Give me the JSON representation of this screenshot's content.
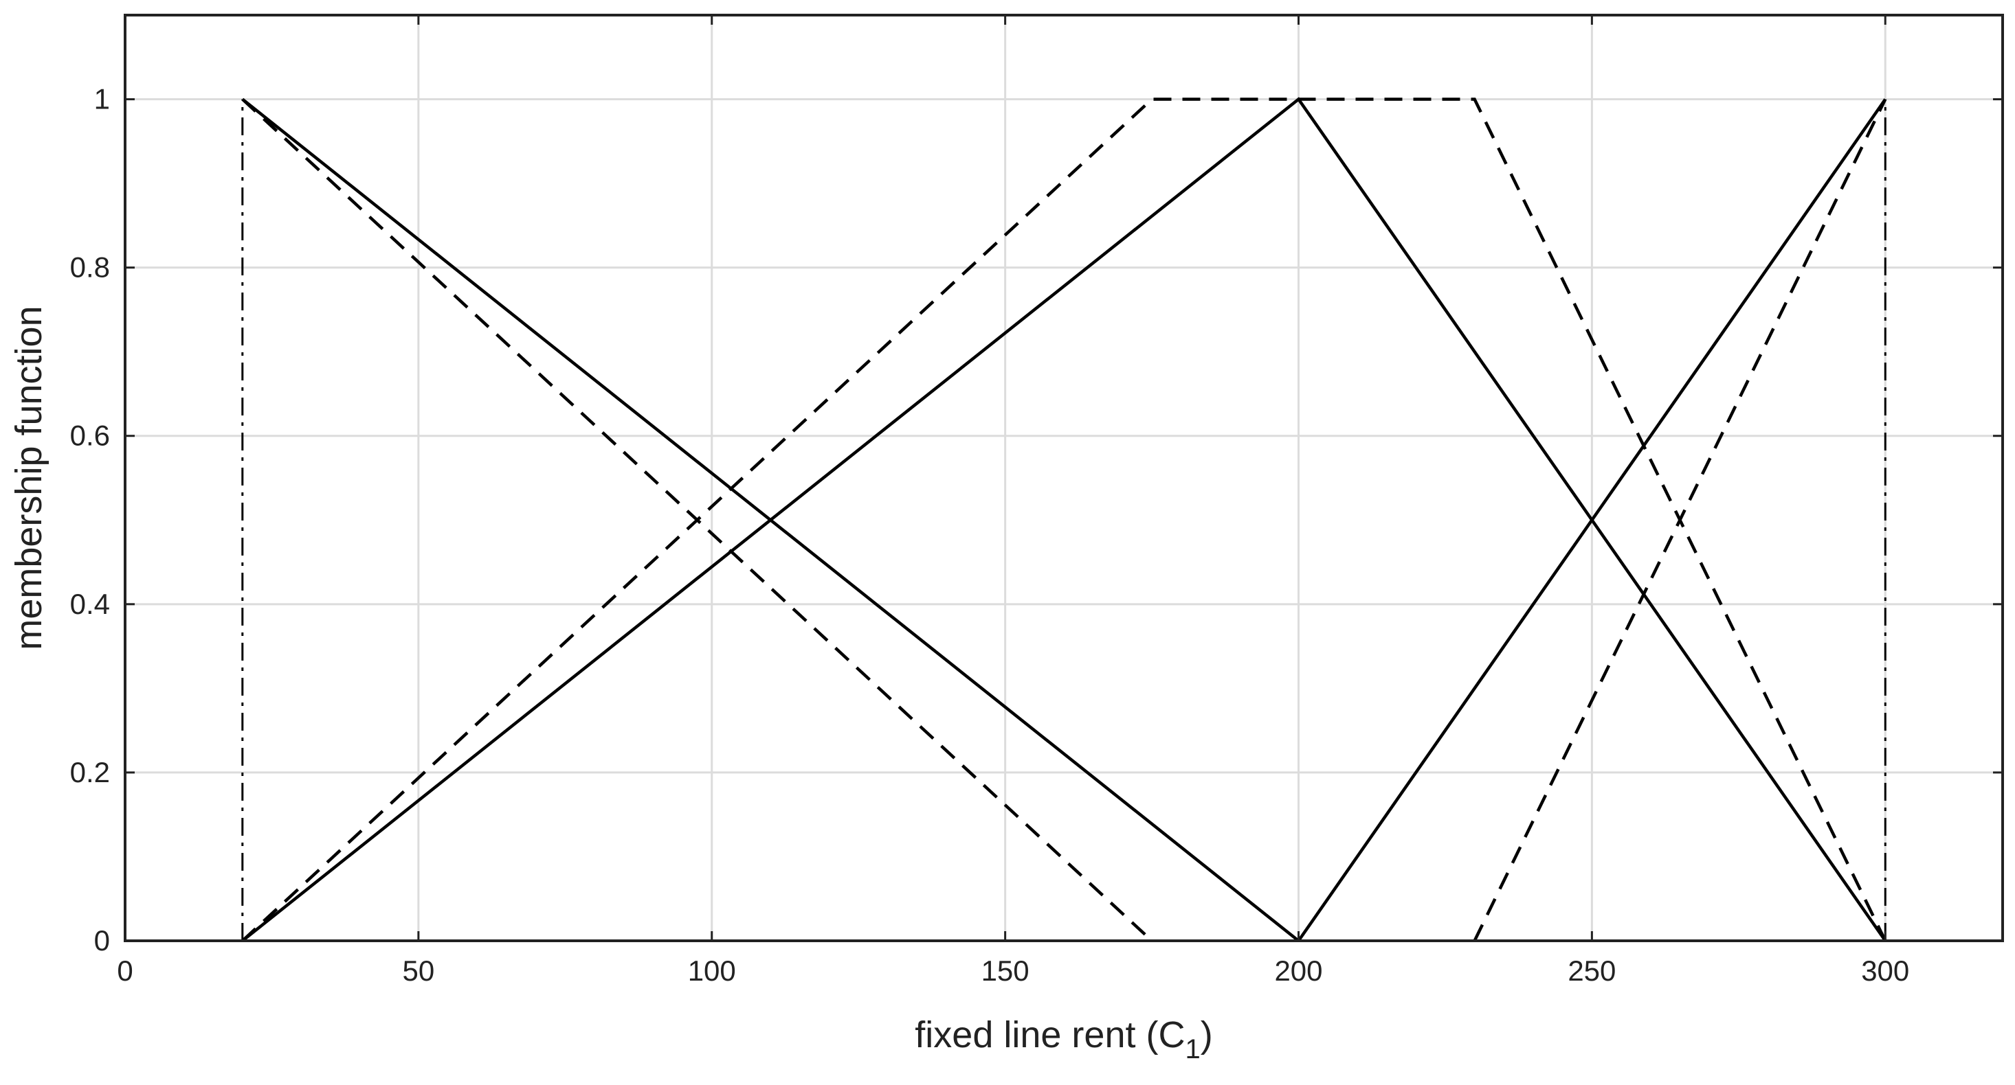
{
  "chart_data": {
    "type": "line",
    "title": "",
    "xlabel": "fixed line rent (C",
    "xlabel_subscript": "1",
    "xlabel_suffix": ")",
    "ylabel": "membership function",
    "xlim": [
      0,
      320
    ],
    "ylim": [
      0,
      1.1
    ],
    "xticks": [
      0,
      50,
      100,
      150,
      200,
      250,
      300
    ],
    "xtick_labels": [
      "0",
      "50",
      "100",
      "150",
      "200",
      "250",
      "300"
    ],
    "yticks": [
      0,
      0.2,
      0.4,
      0.6,
      0.8,
      1
    ],
    "ytick_labels": [
      "0",
      "0.2",
      "0.4",
      "0.6",
      "0.8",
      "1"
    ],
    "grid": true,
    "legend": "none",
    "colors": {
      "line": "#000000",
      "grid": "#dcdcdc",
      "axis": "#222222"
    },
    "series": [
      {
        "style": "solid",
        "x": [
          20,
          200
        ],
        "y": [
          1,
          0
        ]
      },
      {
        "style": "solid",
        "x": [
          20,
          200,
          300
        ],
        "y": [
          0,
          1,
          0
        ]
      },
      {
        "style": "solid",
        "x": [
          200,
          300
        ],
        "y": [
          0,
          1
        ]
      },
      {
        "style": "dashed",
        "x": [
          20,
          175
        ],
        "y": [
          1,
          0
        ]
      },
      {
        "style": "dashed",
        "x": [
          20,
          175,
          230,
          300
        ],
        "y": [
          0,
          1,
          1,
          0
        ]
      },
      {
        "style": "dashed",
        "x": [
          230,
          300
        ],
        "y": [
          0,
          1
        ]
      },
      {
        "style": "dashdot",
        "x": [
          20,
          20
        ],
        "y": [
          0,
          1
        ]
      },
      {
        "style": "dashdot",
        "x": [
          300,
          300
        ],
        "y": [
          0,
          1
        ]
      }
    ]
  }
}
